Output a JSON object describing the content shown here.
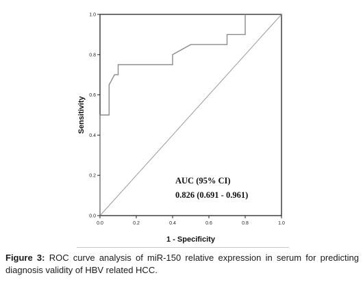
{
  "chart_data": {
    "type": "line",
    "title": "",
    "xlabel": "1 - Specificity",
    "ylabel": "Sensitivity",
    "xlim": [
      0,
      1
    ],
    "ylim": [
      0,
      1
    ],
    "x_ticks": [
      0,
      0.2,
      0.4,
      0.6,
      0.8,
      1.0
    ],
    "y_ticks": [
      0,
      0.2,
      0.4,
      0.6,
      0.8,
      1.0
    ],
    "x_tick_labels": [
      "0.0",
      "0.2",
      "0.4",
      "0.6",
      "0.8",
      "1.0"
    ],
    "y_tick_labels": [
      "0.0",
      "0.2",
      "0.4",
      "0.6",
      "0.8",
      "1.0"
    ],
    "grid": false,
    "series": [
      {
        "x": [
          0,
          0,
          0.05,
          0.05,
          0.08,
          0.1,
          0.1,
          0.4,
          0.4,
          0.5,
          0.7,
          0.7,
          0.8,
          0.8
        ],
        "y": [
          0,
          0.5,
          0.5,
          0.65,
          0.7,
          0.7,
          0.75,
          0.75,
          0.8,
          0.85,
          0.85,
          0.9,
          0.9,
          1.0
        ],
        "style": "step",
        "color": "#8a8a8a"
      },
      {
        "x": [
          0,
          1
        ],
        "y": [
          0,
          1
        ],
        "style": "reference",
        "color": "#9a9a9a"
      }
    ],
    "annotations": [
      "AUC (95% CI)",
      "0.826 (0.691 - 0.961)"
    ]
  },
  "caption": {
    "label": "Figure 3:",
    "text": " ROC curve analysis of miR-150 relative expression in serum for predicting diagnosis validity of HBV related HCC."
  }
}
